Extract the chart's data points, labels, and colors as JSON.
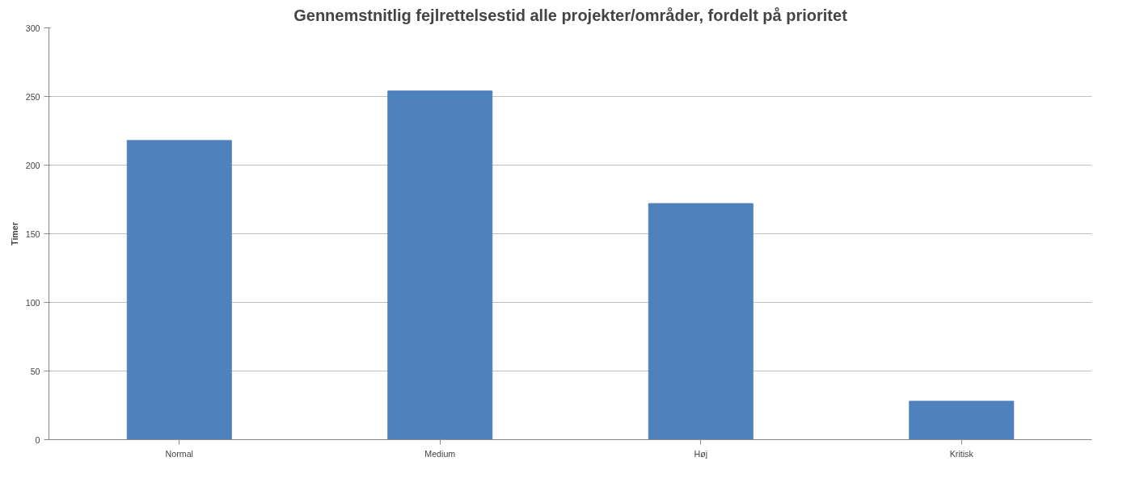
{
  "chart_data": {
    "type": "bar",
    "title": "Gennemstnitlig fejlrettelsestid alle projekter/områder, fordelt på prioritet",
    "ylabel": "Timer",
    "categories": [
      "Normal",
      "Medium",
      "Høj",
      "Kritisk"
    ],
    "values": [
      218,
      254,
      172,
      28
    ],
    "color": "#4f81bd",
    "ylim": [
      0,
      300
    ],
    "yticks": [
      0,
      50,
      100,
      150,
      200,
      250,
      300
    ],
    "grid": "y"
  }
}
